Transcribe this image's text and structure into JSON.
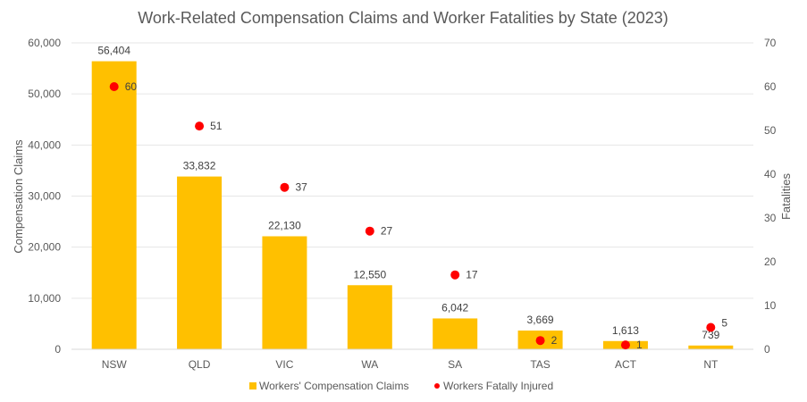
{
  "chart_data": {
    "type": "bar",
    "title": "Work-Related Compensation Claims and Worker Fatalities by State (2023)",
    "categories": [
      "NSW",
      "QLD",
      "VIC",
      "WA",
      "SA",
      "TAS",
      "ACT",
      "NT"
    ],
    "series": [
      {
        "name": "Workers' Compensation Claims",
        "type": "bar",
        "axis": "left",
        "color": "#FFC000",
        "values": [
          56404,
          33832,
          22130,
          12550,
          6042,
          3669,
          1613,
          739
        ],
        "labels": [
          "56,404",
          "33,832",
          "22,130",
          "12,550",
          "6,042",
          "3,669",
          "1,613",
          "739"
        ]
      },
      {
        "name": "Workers Fatally Injured",
        "type": "scatter",
        "axis": "right",
        "color": "#FF0000",
        "values": [
          60,
          51,
          37,
          27,
          17,
          2,
          1,
          5
        ],
        "labels": [
          "60",
          "51",
          "37",
          "27",
          "17",
          "2",
          "1",
          "5"
        ]
      }
    ],
    "ylabel": "Compensation Claims",
    "y2label": "Fatalities",
    "ylim": [
      0,
      60000
    ],
    "y2lim": [
      0,
      70
    ],
    "yticks": [
      "0",
      "10,000",
      "20,000",
      "30,000",
      "40,000",
      "50,000",
      "60,000"
    ],
    "y2ticks": [
      "0",
      "10",
      "20",
      "30",
      "40",
      "50",
      "60",
      "70"
    ],
    "grid": true,
    "legend_position": "bottom"
  }
}
